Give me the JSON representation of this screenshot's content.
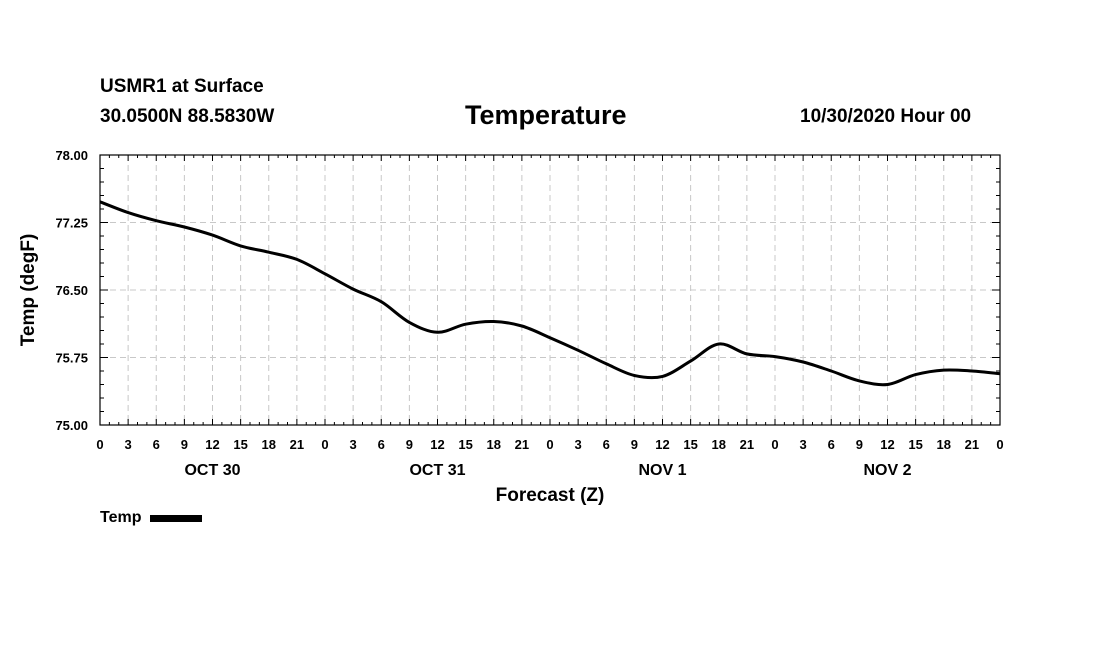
{
  "header": {
    "station": "USMR1 at Surface",
    "coords": "30.0500N 88.5830W",
    "title": "Temperature",
    "run": "10/30/2020 Hour 00"
  },
  "chart_data": {
    "type": "line",
    "title": "Temperature",
    "xlabel": "Forecast (Z)",
    "ylabel": "Temp (degF)",
    "ylim": [
      75.0,
      78.0
    ],
    "yticks": [
      "75.00",
      "75.75",
      "76.50",
      "77.25",
      "78.00"
    ],
    "xlim_hours": [
      0,
      96
    ],
    "xtick_step_hours": 3,
    "xtick_labels": [
      "0",
      "3",
      "6",
      "9",
      "12",
      "15",
      "18",
      "21",
      "0",
      "3",
      "6",
      "9",
      "12",
      "15",
      "18",
      "21",
      "0",
      "3",
      "6",
      "9",
      "12",
      "15",
      "18",
      "21",
      "0",
      "3",
      "6",
      "9",
      "12",
      "15",
      "18",
      "21",
      "0"
    ],
    "days": [
      {
        "label": "OCT 30",
        "center_hour": 12
      },
      {
        "label": "OCT 31",
        "center_hour": 36
      },
      {
        "label": "NOV 1",
        "center_hour": 60
      },
      {
        "label": "NOV 2",
        "center_hour": 84
      }
    ],
    "grid": true,
    "series": [
      {
        "name": "Temp",
        "color": "#000000",
        "x": [
          0,
          3,
          6,
          9,
          12,
          15,
          18,
          21,
          24,
          27,
          30,
          33,
          36,
          39,
          42,
          45,
          48,
          51,
          54,
          57,
          60,
          63,
          66,
          69,
          72,
          75,
          78,
          81,
          84,
          87,
          90,
          93,
          96
        ],
        "values": [
          77.48,
          77.36,
          77.27,
          77.2,
          77.11,
          76.99,
          76.92,
          76.84,
          76.68,
          76.51,
          76.37,
          76.14,
          76.03,
          76.12,
          76.15,
          76.1,
          75.97,
          75.83,
          75.68,
          75.55,
          75.54,
          75.71,
          75.9,
          75.79,
          75.76,
          75.7,
          75.6,
          75.49,
          75.45,
          75.56,
          75.61,
          75.6,
          75.57
        ]
      }
    ]
  },
  "legend": {
    "label": "Temp"
  }
}
